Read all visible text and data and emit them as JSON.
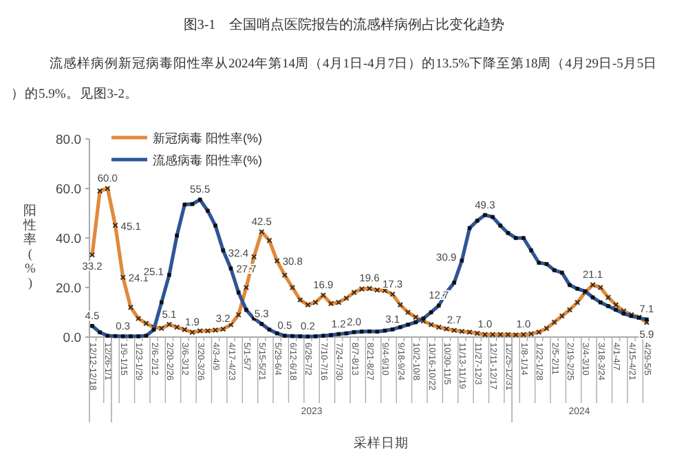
{
  "chart_data": {
    "type": "line",
    "title": "图3-1　全国哨点医院报告的流感样病例占比变化趋势",
    "annotations": [
      "流感样病例新冠病毒阳性率从2024年第14周（4月1日-4月7日）的13.5%下降至第18周（4月29日-5月5日）的5.9%。见图3-2。",
      "2023",
      "2024"
    ],
    "xlabel": "采样日期",
    "ylabel": "阳性率(%)",
    "categories": [
      "12/12-12/18",
      null,
      "12/26-1/1",
      null,
      "1/9-1/15",
      null,
      "1/23-1/29",
      null,
      "2/6-2/12",
      null,
      "2/20-2/26",
      null,
      "3/6-3/12",
      null,
      "3/20-3/26",
      null,
      "4/3-4/9",
      null,
      "4/17-4/23",
      null,
      "5/1-5/7",
      null,
      "5/15-5/21",
      null,
      "5/29-6/4",
      null,
      "6/12-6/18",
      null,
      "6/26-7/2",
      null,
      "7/10-7/16",
      null,
      "7/24-7/30",
      null,
      "8/7-8/13",
      null,
      "8/21-8/27",
      null,
      "9/4-9/10",
      null,
      "9/18-9/24",
      null,
      "10/2-10/8",
      null,
      "10/16-10/22",
      null,
      "10/30-11/5",
      null,
      "11/13-11/19",
      null,
      "11/27-12/3",
      null,
      "12/11-12/17",
      null,
      "12/25-12/31",
      null,
      "1/8-1/14",
      null,
      "1/22-1/28",
      null,
      "2/5-2/11",
      null,
      "2/19-2/25",
      null,
      "3/4-3/10",
      null,
      "3/18-3/24",
      null,
      "4/1-4/7",
      null,
      "4/15-4/21",
      null,
      "4/29-5/5"
    ],
    "series": [
      {
        "name": "新冠病毒 阳性率(%)",
        "color": "#e08a3c",
        "marker": "cross",
        "values": [
          33.2,
          59,
          60.0,
          45.1,
          24.1,
          12,
          7.5,
          5.5,
          4,
          3.5,
          5.1,
          4,
          3,
          1.9,
          2.5,
          2.5,
          2.8,
          3.2,
          5,
          9,
          20,
          32.4,
          42.5,
          39,
          30.8,
          25,
          20,
          15,
          13,
          14,
          16.9,
          13.5,
          14,
          15.7,
          18,
          19.4,
          19.6,
          19,
          18.8,
          17.3,
          13,
          10,
          8,
          6.5,
          5,
          4,
          3.3,
          2.7,
          2.3,
          2,
          1.5,
          1.0,
          1,
          1,
          1,
          0.9,
          1.0,
          1.3,
          2,
          3.5,
          6,
          8.5,
          11,
          14,
          18,
          21.1,
          20,
          16,
          13,
          10.5,
          9,
          8,
          5.9
        ],
        "value_labels": [
          "33.2",
          null,
          "60.0",
          "45.1",
          "24.1",
          null,
          null,
          null,
          null,
          null,
          "5.1",
          null,
          null,
          "1.9",
          null,
          null,
          null,
          "3.2",
          null,
          null,
          null,
          "32.4",
          "42.5",
          null,
          "30.8",
          null,
          null,
          null,
          null,
          null,
          "16.9",
          null,
          null,
          null,
          null,
          null,
          "19.6",
          null,
          null,
          "17.3",
          null,
          null,
          null,
          null,
          null,
          null,
          null,
          "2.7",
          null,
          null,
          null,
          "1.0",
          null,
          null,
          null,
          null,
          "1.0",
          null,
          null,
          null,
          null,
          null,
          null,
          null,
          null,
          "21.1",
          null,
          null,
          null,
          null,
          null,
          null,
          "5.9"
        ]
      },
      {
        "name": "流感病毒 阳性率(%)",
        "color": "#2f5597",
        "marker": "square",
        "values": [
          4.5,
          1.9,
          0.5,
          0.4,
          0.3,
          0.3,
          0.3,
          0.5,
          3,
          14,
          25.1,
          41,
          53.5,
          53.7,
          55.5,
          51,
          45,
          35,
          27.7,
          18,
          11,
          7.5,
          5.3,
          3,
          1.5,
          0.5,
          0.4,
          0.3,
          0.2,
          0.3,
          0.5,
          0.8,
          1.2,
          1.5,
          2.0,
          2.2,
          2.3,
          2.2,
          2.6,
          3.1,
          4,
          5,
          6,
          7.5,
          10,
          12.7,
          18,
          22,
          30.9,
          44,
          47,
          49.3,
          48.5,
          45,
          42,
          40,
          40,
          35,
          30,
          29.5,
          27,
          26,
          21,
          19.5,
          18.5,
          16,
          14,
          12.5,
          11,
          9.5,
          8.5,
          7.8,
          7.1
        ],
        "value_labels": [
          "4.5",
          null,
          null,
          null,
          "0.3",
          null,
          null,
          null,
          null,
          null,
          "25.1",
          null,
          null,
          null,
          "55.5",
          null,
          null,
          null,
          "27.7",
          null,
          null,
          null,
          "5.3",
          null,
          null,
          "0.5",
          null,
          null,
          "0.2",
          null,
          null,
          null,
          "1.2",
          null,
          "2.0",
          null,
          null,
          null,
          null,
          "3.1",
          null,
          null,
          null,
          null,
          null,
          "12.7",
          null,
          null,
          "30.9",
          null,
          null,
          "49.3",
          null,
          null,
          null,
          null,
          null,
          null,
          null,
          null,
          null,
          null,
          null,
          null,
          null,
          null,
          null,
          null,
          null,
          null,
          null,
          null,
          "7.1"
        ]
      }
    ],
    "ylim": [
      0,
      80
    ],
    "yticks": [
      {
        "value": 0,
        "label": "0.0"
      },
      {
        "value": 20,
        "label": "20.0"
      },
      {
        "value": 40,
        "label": "40.0"
      },
      {
        "value": 60,
        "label": "60.0"
      },
      {
        "value": 80,
        "label": "80.0"
      }
    ],
    "legend": "top left",
    "grid": false
  }
}
